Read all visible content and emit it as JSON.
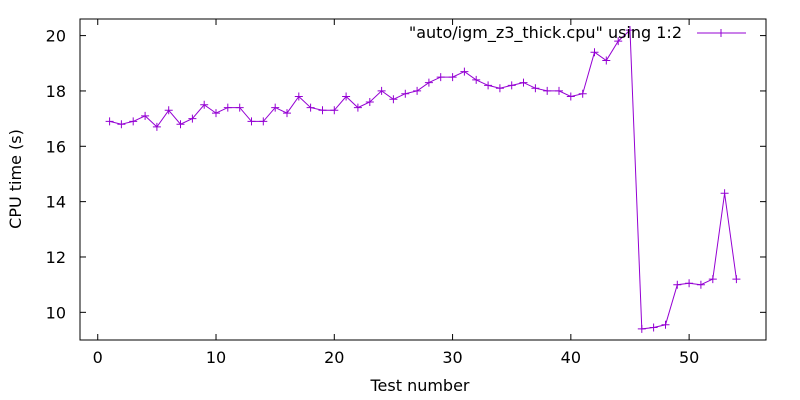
{
  "chart_data": {
    "type": "line",
    "xlabel": "Test number",
    "ylabel": "CPU time (s)",
    "xlim": [
      -1.5,
      56.5
    ],
    "ylim": [
      9,
      20.6
    ],
    "xticks": [
      0,
      10,
      20,
      30,
      40,
      50
    ],
    "yticks": [
      10,
      12,
      14,
      16,
      18,
      20
    ],
    "grid": false,
    "legend_position": "top-right",
    "series": [
      {
        "name": "\"auto/igm_z3_thick.cpu\" using 1:2",
        "color": "#9400d3",
        "marker": "plus",
        "x": [
          1,
          2,
          3,
          4,
          5,
          6,
          7,
          8,
          9,
          10,
          11,
          12,
          13,
          14,
          15,
          16,
          17,
          18,
          19,
          20,
          21,
          22,
          23,
          24,
          25,
          26,
          27,
          28,
          29,
          30,
          31,
          32,
          33,
          34,
          35,
          36,
          37,
          38,
          39,
          40,
          41,
          42,
          43,
          44,
          45,
          46,
          47,
          48,
          49,
          50,
          51,
          52,
          53,
          54
        ],
        "y": [
          16.9,
          16.8,
          16.9,
          17.1,
          16.7,
          17.3,
          16.8,
          17.0,
          17.5,
          17.2,
          17.4,
          17.4,
          16.9,
          16.9,
          17.4,
          17.2,
          17.8,
          17.4,
          17.3,
          17.3,
          17.8,
          17.4,
          17.6,
          18.0,
          17.7,
          17.9,
          18.0,
          18.3,
          18.5,
          18.5,
          18.7,
          18.4,
          18.2,
          18.1,
          18.2,
          18.3,
          18.1,
          18.0,
          18.0,
          17.8,
          17.9,
          19.4,
          19.1,
          19.8,
          20.2,
          9.4,
          9.45,
          9.55,
          11.0,
          11.05,
          11.0,
          11.2,
          14.3,
          11.2
        ]
      }
    ]
  }
}
